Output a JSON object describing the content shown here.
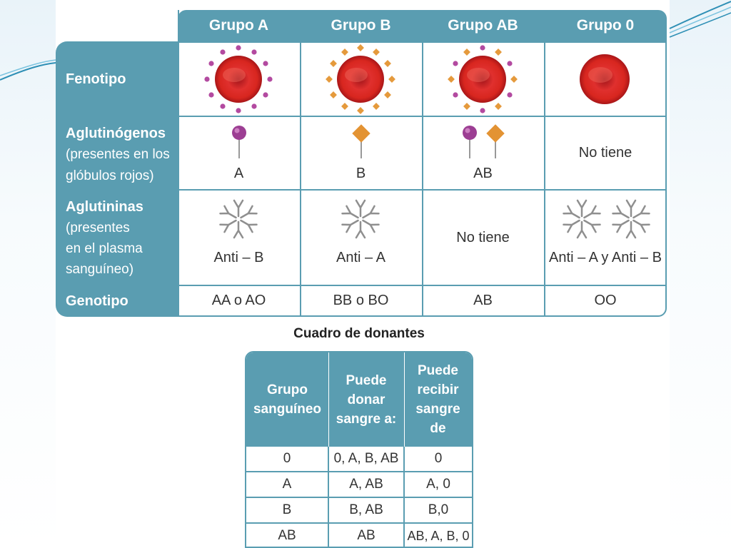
{
  "theme": {
    "accent": "#5a9db1",
    "cell_text": "#333333"
  },
  "main_table": {
    "columns": [
      "Grupo A",
      "Grupo B",
      "Grupo AB",
      "Grupo 0"
    ],
    "rows": {
      "fenotipo": {
        "label": "Fenotipo"
      },
      "aglutinogenos": {
        "label": "Aglutinógenos",
        "sublabel_1": "(presentes en los",
        "sublabel_2": "glóbulos rojos)",
        "values": [
          "A",
          "B",
          "AB",
          "No tiene"
        ]
      },
      "aglutininas": {
        "label": "Aglutininas",
        "sublabel_1": "(presentes",
        "sublabel_2": "en el plasma",
        "sublabel_3": "sanguíneo)",
        "values": [
          "Anti – B",
          "Anti – A",
          "No tiene",
          "Anti – A y Anti – B"
        ]
      },
      "genotipo": {
        "label": "Genotipo",
        "values": [
          "AA o AO",
          "BB o BO",
          "AB",
          "OO"
        ]
      }
    }
  },
  "donor_table": {
    "title": "Cuadro de donantes",
    "headers": {
      "col1": [
        "Grupo",
        "sanguíneo"
      ],
      "col2": [
        "Puede",
        "donar",
        "sangre a:"
      ],
      "col3": [
        "Puede",
        "recibir",
        "sangre",
        "de"
      ]
    },
    "rows": [
      [
        "0",
        "0, A, B, AB",
        "0"
      ],
      [
        "A",
        "A, AB",
        "A, 0"
      ],
      [
        "B",
        "B, AB",
        "B,0"
      ],
      [
        "AB",
        "AB",
        "AB, A, B, 0"
      ]
    ]
  }
}
